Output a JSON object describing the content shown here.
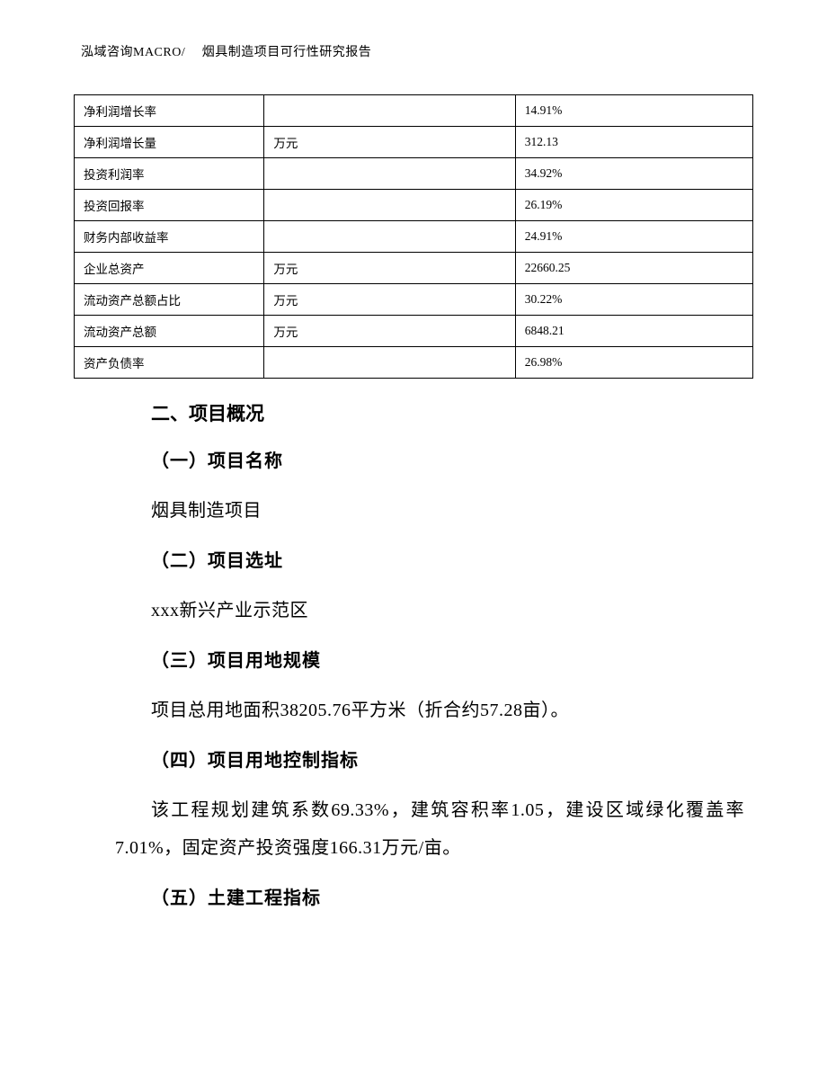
{
  "header": {
    "text": "泓域咨询MACRO/　 烟具制造项目可行性研究报告"
  },
  "table": {
    "background_color": "#ffffff",
    "border_color": "#000000",
    "font_size": 13.5,
    "rows": [
      {
        "label": "净利润增长率",
        "unit": "",
        "value": "14.91%"
      },
      {
        "label": "净利润增长量",
        "unit": "万元",
        "value": "312.13"
      },
      {
        "label": "投资利润率",
        "unit": "",
        "value": "34.92%"
      },
      {
        "label": "投资回报率",
        "unit": "",
        "value": "26.19%"
      },
      {
        "label": "财务内部收益率",
        "unit": "",
        "value": "24.91%"
      },
      {
        "label": "企业总资产",
        "unit": "万元",
        "value": "22660.25"
      },
      {
        "label": "流动资产总额占比",
        "unit": "万元",
        "value": "30.22%"
      },
      {
        "label": "流动资产总额",
        "unit": "万元",
        "value": "6848.21"
      },
      {
        "label": "资产负债率",
        "unit": "",
        "value": "26.98%"
      }
    ]
  },
  "content": {
    "section_title": "二、项目概况",
    "sections": [
      {
        "heading": "（一）项目名称",
        "body": "烟具制造项目"
      },
      {
        "heading": "（二）项目选址",
        "body": "xxx新兴产业示范区"
      },
      {
        "heading": "（三）项目用地规模",
        "body": "项目总用地面积38205.76平方米（折合约57.28亩）。"
      },
      {
        "heading": "（四）项目用地控制指标",
        "body": "该工程规划建筑系数69.33%，建筑容积率1.05，建设区域绿化覆盖率7.01%，固定资产投资强度166.31万元/亩。"
      },
      {
        "heading": "（五）土建工程指标",
        "body": ""
      }
    ]
  },
  "styles": {
    "page_bg": "#ffffff",
    "text_color": "#000000",
    "heading_font_size": 21,
    "body_font_size": 20,
    "header_font_size": 14
  }
}
